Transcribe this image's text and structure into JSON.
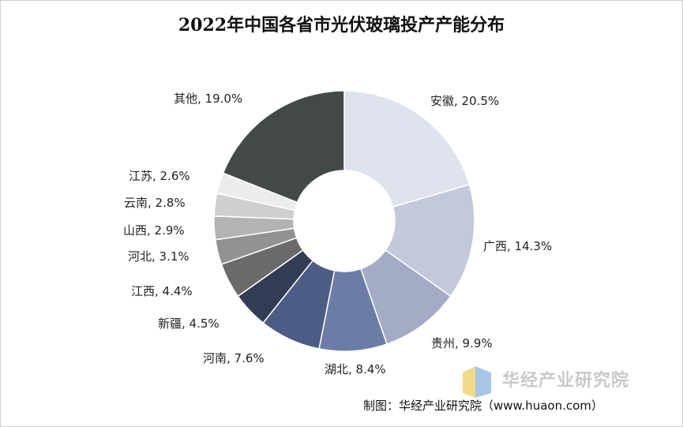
{
  "title": "2022年中国各省市光伏玻璃投产产能分布",
  "source_note": "制图：华经产业研究院（www.huaon.com）",
  "watermark_text": "华经产业研究院",
  "chart_data": {
    "type": "pie",
    "donut": true,
    "title": "2022年中国各省市光伏玻璃投产产能分布",
    "unit": "%",
    "slices": [
      {
        "name": "安徽",
        "value": 20.5,
        "label": "安徽, 20.5%",
        "color": "#dfe3ed"
      },
      {
        "name": "广西",
        "value": 14.3,
        "label": "广西, 14.3%",
        "color": "#c3c9db"
      },
      {
        "name": "贵州",
        "value": 9.9,
        "label": "贵州, 9.9%",
        "color": "#a3abc6"
      },
      {
        "name": "湖北",
        "value": 8.4,
        "label": "湖北, 8.4%",
        "color": "#6d7ca6"
      },
      {
        "name": "河南",
        "value": 7.6,
        "label": "河南, 7.6%",
        "color": "#4d5c84"
      },
      {
        "name": "新疆",
        "value": 4.5,
        "label": "新疆, 4.5%",
        "color": "#323c54"
      },
      {
        "name": "江西",
        "value": 4.4,
        "label": "江西, 4.4%",
        "color": "#6a6a6a"
      },
      {
        "name": "河北",
        "value": 3.1,
        "label": "河北, 3.1%",
        "color": "#929292"
      },
      {
        "name": "山西",
        "value": 2.9,
        "label": "山西, 2.9%",
        "color": "#b3b3b3"
      },
      {
        "name": "云南",
        "value": 2.8,
        "label": "云南, 2.8%",
        "color": "#cfcfcf"
      },
      {
        "name": "江苏",
        "value": 2.6,
        "label": "江苏, 2.6%",
        "color": "#ececec"
      },
      {
        "name": "其他",
        "value": 19.0,
        "label": "其他, 19.0%",
        "color": "#434948"
      }
    ]
  }
}
